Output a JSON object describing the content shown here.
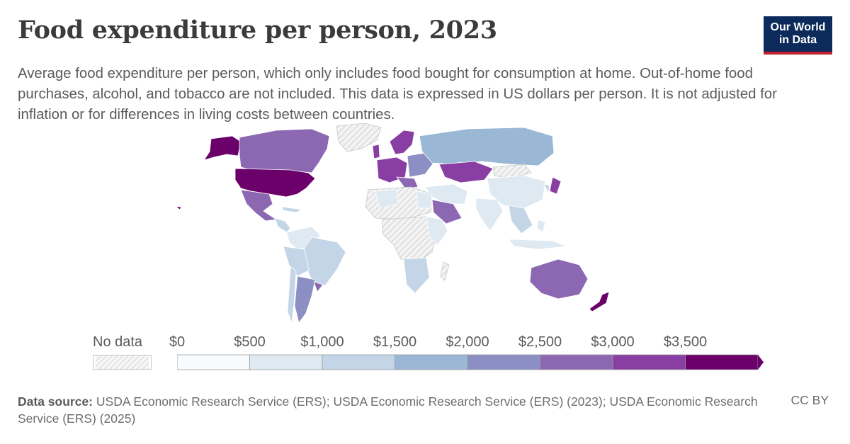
{
  "title": "Food expenditure per person, 2023",
  "subtitle": "Average food expenditure per person, which only includes food bought for consumption at home. Out-of-home food purchases, alcohol, and tobacco are not included. This data is expressed in US dollars per person. It is not adjusted for inflation or for differences in living costs between countries.",
  "logo": {
    "line1": "Our World",
    "line2": "in Data"
  },
  "legend": {
    "no_data_label": "No data",
    "ticks": [
      "$0",
      "$500",
      "$1,000",
      "$1,500",
      "$2,000",
      "$2,500",
      "$3,000",
      "$3,500"
    ],
    "bin_colors": [
      "#f7fbfd",
      "#dfe9f2",
      "#c3d5e6",
      "#9ab8d6",
      "#8b8fc3",
      "#8c67b2",
      "#893ea3",
      "#6b006b"
    ]
  },
  "map_colors": {
    "no_data_fill": "#f0f0f0",
    "border": "#ffffff"
  },
  "footer": {
    "source_label": "Data source:",
    "source_text": "USDA Economic Research Service (ERS); USDA Economic Research Service (ERS) (2023); USDA Economic Research Service (ERS) (2025)",
    "license": "CC BY"
  }
}
